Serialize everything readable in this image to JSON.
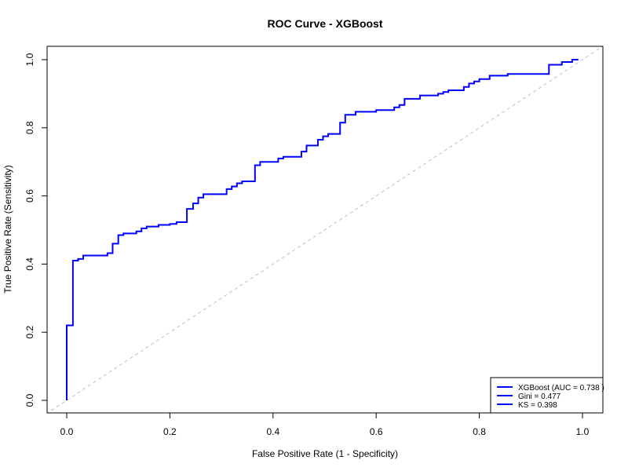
{
  "chart_data": {
    "type": "line",
    "title": "ROC Curve - XGBoost",
    "xlabel": "False Positive Rate (1 - Specificity)",
    "ylabel": "True Positive Rate (Sensitivity)",
    "xlim": [
      0,
      1
    ],
    "ylim": [
      0,
      1
    ],
    "x_ticks": [
      "0.0",
      "0.2",
      "0.4",
      "0.6",
      "0.8",
      "1.0"
    ],
    "y_ticks": [
      "0.0",
      "0.2",
      "0.4",
      "0.6",
      "0.8",
      "1.0"
    ],
    "grid": false,
    "legend_position": "bottom-right",
    "legend": [
      "XGBoost (AUC = 0.738 )",
      "Gini = 0.477",
      "KS = 0.398"
    ],
    "colors": {
      "curve": "#0000ff",
      "diagonal": "#bebebe",
      "frame": "#000000"
    },
    "series": [
      {
        "name": "XGBoost (AUC = 0.738 )",
        "points": [
          [
            0.0,
            0.0
          ],
          [
            0.0,
            0.22
          ],
          [
            0.012,
            0.22
          ],
          [
            0.012,
            0.41
          ],
          [
            0.022,
            0.41
          ],
          [
            0.022,
            0.415
          ],
          [
            0.032,
            0.415
          ],
          [
            0.032,
            0.425
          ],
          [
            0.079,
            0.425
          ],
          [
            0.079,
            0.432
          ],
          [
            0.089,
            0.432
          ],
          [
            0.089,
            0.46
          ],
          [
            0.1,
            0.46
          ],
          [
            0.1,
            0.485
          ],
          [
            0.11,
            0.485
          ],
          [
            0.11,
            0.49
          ],
          [
            0.135,
            0.49
          ],
          [
            0.135,
            0.496
          ],
          [
            0.145,
            0.496
          ],
          [
            0.145,
            0.505
          ],
          [
            0.155,
            0.505
          ],
          [
            0.155,
            0.51
          ],
          [
            0.178,
            0.51
          ],
          [
            0.178,
            0.515
          ],
          [
            0.2,
            0.515
          ],
          [
            0.2,
            0.518
          ],
          [
            0.213,
            0.518
          ],
          [
            0.213,
            0.523
          ],
          [
            0.233,
            0.523
          ],
          [
            0.233,
            0.562
          ],
          [
            0.245,
            0.562
          ],
          [
            0.245,
            0.578
          ],
          [
            0.255,
            0.578
          ],
          [
            0.255,
            0.595
          ],
          [
            0.265,
            0.595
          ],
          [
            0.265,
            0.605
          ],
          [
            0.31,
            0.605
          ],
          [
            0.31,
            0.62
          ],
          [
            0.32,
            0.62
          ],
          [
            0.32,
            0.628
          ],
          [
            0.33,
            0.628
          ],
          [
            0.33,
            0.637
          ],
          [
            0.34,
            0.637
          ],
          [
            0.34,
            0.643
          ],
          [
            0.365,
            0.643
          ],
          [
            0.365,
            0.69
          ],
          [
            0.375,
            0.69
          ],
          [
            0.375,
            0.7
          ],
          [
            0.41,
            0.7
          ],
          [
            0.41,
            0.71
          ],
          [
            0.42,
            0.71
          ],
          [
            0.42,
            0.715
          ],
          [
            0.455,
            0.715
          ],
          [
            0.455,
            0.73
          ],
          [
            0.465,
            0.73
          ],
          [
            0.465,
            0.748
          ],
          [
            0.487,
            0.748
          ],
          [
            0.487,
            0.765
          ],
          [
            0.497,
            0.765
          ],
          [
            0.497,
            0.775
          ],
          [
            0.507,
            0.775
          ],
          [
            0.507,
            0.782
          ],
          [
            0.53,
            0.782
          ],
          [
            0.53,
            0.815
          ],
          [
            0.54,
            0.815
          ],
          [
            0.54,
            0.838
          ],
          [
            0.56,
            0.838
          ],
          [
            0.56,
            0.847
          ],
          [
            0.6,
            0.847
          ],
          [
            0.6,
            0.852
          ],
          [
            0.635,
            0.852
          ],
          [
            0.635,
            0.86
          ],
          [
            0.645,
            0.86
          ],
          [
            0.645,
            0.867
          ],
          [
            0.655,
            0.867
          ],
          [
            0.655,
            0.885
          ],
          [
            0.685,
            0.885
          ],
          [
            0.685,
            0.895
          ],
          [
            0.72,
            0.895
          ],
          [
            0.72,
            0.9
          ],
          [
            0.73,
            0.9
          ],
          [
            0.73,
            0.905
          ],
          [
            0.74,
            0.905
          ],
          [
            0.74,
            0.91
          ],
          [
            0.77,
            0.91
          ],
          [
            0.77,
            0.92
          ],
          [
            0.78,
            0.92
          ],
          [
            0.78,
            0.93
          ],
          [
            0.79,
            0.93
          ],
          [
            0.79,
            0.936
          ],
          [
            0.8,
            0.936
          ],
          [
            0.8,
            0.943
          ],
          [
            0.82,
            0.943
          ],
          [
            0.82,
            0.953
          ],
          [
            0.855,
            0.953
          ],
          [
            0.855,
            0.958
          ],
          [
            0.935,
            0.958
          ],
          [
            0.935,
            0.985
          ],
          [
            0.96,
            0.985
          ],
          [
            0.96,
            0.993
          ],
          [
            0.98,
            0.993
          ],
          [
            0.98,
            1.0
          ],
          [
            0.992,
            1.0
          ]
        ]
      }
    ],
    "reference_line": {
      "points": [
        [
          -0.04,
          -0.04
        ],
        [
          1.04,
          1.04
        ]
      ]
    }
  }
}
